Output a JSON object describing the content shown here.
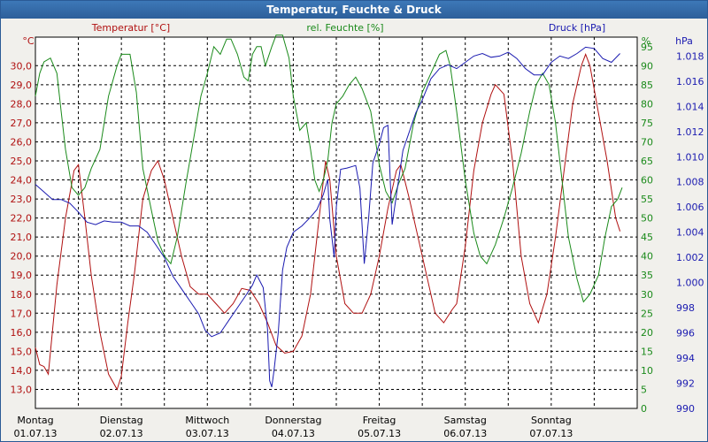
{
  "window": {
    "title": "Temperatur, Feuchte & Druck"
  },
  "chart_data": {
    "type": "line",
    "title": "Temperatur, Feuchte & Druck",
    "grid": true,
    "days": [
      {
        "day": "Montag",
        "date": "01.07.13"
      },
      {
        "day": "Dienstag",
        "date": "02.07.13"
      },
      {
        "day": "Mittwoch",
        "date": "03.07.13"
      },
      {
        "day": "Donnerstag",
        "date": "04.07.13"
      },
      {
        "day": "Freitag",
        "date": "05.07.13"
      },
      {
        "day": "Samstag",
        "date": "06.07.13"
      },
      {
        "day": "Sonntag",
        "date": "07.07.13"
      }
    ],
    "axes": {
      "temperature": {
        "label": "Temperatur [°C]",
        "unit": "°C",
        "range": [
          12,
          31.5
        ],
        "color": "#b01010",
        "ticks": [
          "13,0",
          "14,0",
          "15,0",
          "16,0",
          "17,0",
          "18,0",
          "19,0",
          "20,0",
          "21,0",
          "22,0",
          "23,0",
          "24,0",
          "25,0",
          "26,0",
          "27,0",
          "28,0",
          "29,0",
          "30,0"
        ]
      },
      "humidity": {
        "label": "rel. Feuchte [%]",
        "unit": "%",
        "range": [
          0,
          97.5
        ],
        "color": "#1a8a1a",
        "ticks": [
          "0",
          "5",
          "10",
          "15",
          "20",
          "25",
          "30",
          "35",
          "40",
          "45",
          "50",
          "55",
          "60",
          "65",
          "70",
          "75",
          "80",
          "85",
          "90",
          "95"
        ]
      },
      "pressure": {
        "label": "Druck [hPa]",
        "unit": "hPa",
        "range": [
          990,
          1019.5
        ],
        "color": "#1a1ab0",
        "ticks": [
          "990",
          "992",
          "994",
          "996",
          "998",
          "1.000",
          "1.002",
          "1.004",
          "1.006",
          "1.008",
          "1.010",
          "1.012",
          "1.014",
          "1.016",
          "1.018"
        ]
      }
    },
    "series": [
      {
        "name": "Temperatur [°C]",
        "axis": "temperature",
        "color": "#b01010",
        "points": [
          [
            0,
            15.2
          ],
          [
            0.1,
            14.3
          ],
          [
            0.2,
            14.2
          ],
          [
            0.3,
            13.8
          ],
          [
            0.5,
            18.5
          ],
          [
            0.7,
            22.0
          ],
          [
            0.9,
            24.5
          ],
          [
            1.0,
            24.8
          ],
          [
            1.15,
            22.0
          ],
          [
            1.3,
            19.0
          ],
          [
            1.5,
            16.0
          ],
          [
            1.7,
            13.8
          ],
          [
            1.9,
            13.0
          ],
          [
            2.0,
            13.7
          ],
          [
            2.15,
            16.5
          ],
          [
            2.3,
            19.0
          ],
          [
            2.5,
            23.0
          ],
          [
            2.7,
            24.5
          ],
          [
            2.85,
            25.0
          ],
          [
            3.0,
            24.0
          ],
          [
            3.2,
            22.0
          ],
          [
            3.4,
            20.0
          ],
          [
            3.6,
            18.4
          ],
          [
            3.8,
            18.0
          ],
          [
            4.0,
            18.0
          ],
          [
            4.2,
            17.5
          ],
          [
            4.4,
            17.0
          ],
          [
            4.6,
            17.5
          ],
          [
            4.8,
            18.3
          ],
          [
            5.0,
            18.2
          ],
          [
            5.2,
            17.5
          ],
          [
            5.4,
            16.5
          ],
          [
            5.6,
            15.3
          ],
          [
            5.8,
            14.9
          ],
          [
            6.0,
            15.0
          ],
          [
            6.2,
            15.8
          ],
          [
            6.4,
            18.0
          ],
          [
            6.6,
            22.0
          ],
          [
            6.75,
            25.0
          ],
          [
            6.85,
            24.0
          ],
          [
            7.0,
            20.0
          ],
          [
            7.2,
            17.5
          ],
          [
            7.4,
            17.0
          ],
          [
            7.6,
            17.0
          ],
          [
            7.8,
            18.0
          ],
          [
            8.0,
            20.0
          ],
          [
            8.2,
            22.5
          ],
          [
            8.4,
            24.5
          ],
          [
            8.5,
            24.8
          ],
          [
            8.7,
            23.0
          ],
          [
            8.9,
            21.0
          ],
          [
            9.1,
            19.0
          ],
          [
            9.3,
            17.0
          ],
          [
            9.5,
            16.5
          ],
          [
            9.7,
            17.2
          ],
          [
            9.8,
            17.5
          ],
          [
            10.0,
            20.5
          ],
          [
            10.2,
            24.5
          ],
          [
            10.4,
            27.0
          ],
          [
            10.6,
            28.5
          ],
          [
            10.7,
            29.0
          ],
          [
            10.9,
            28.5
          ],
          [
            11.1,
            25.0
          ],
          [
            11.3,
            20.0
          ],
          [
            11.5,
            17.5
          ],
          [
            11.7,
            16.5
          ],
          [
            11.9,
            18.0
          ],
          [
            12.1,
            21.0
          ],
          [
            12.3,
            24.5
          ],
          [
            12.5,
            28.0
          ],
          [
            12.7,
            30.0
          ],
          [
            12.8,
            30.6
          ],
          [
            12.9,
            30.0
          ],
          [
            13.1,
            27.5
          ],
          [
            13.3,
            25.0
          ],
          [
            13.5,
            22.0
          ],
          [
            13.6,
            21.3
          ]
        ]
      },
      {
        "name": "rel. Feuchte [%]",
        "axis": "humidity",
        "color": "#1a8a1a",
        "points": [
          [
            0,
            82
          ],
          [
            0.1,
            88
          ],
          [
            0.2,
            91
          ],
          [
            0.35,
            92
          ],
          [
            0.5,
            88
          ],
          [
            0.6,
            78
          ],
          [
            0.7,
            68
          ],
          [
            0.85,
            58
          ],
          [
            1.0,
            56
          ],
          [
            1.15,
            58
          ],
          [
            1.3,
            63
          ],
          [
            1.5,
            68
          ],
          [
            1.7,
            82
          ],
          [
            1.9,
            90
          ],
          [
            2.0,
            93
          ],
          [
            2.2,
            93
          ],
          [
            2.35,
            83
          ],
          [
            2.5,
            63
          ],
          [
            2.7,
            52
          ],
          [
            2.85,
            44
          ],
          [
            3.0,
            40
          ],
          [
            3.15,
            38
          ],
          [
            3.3,
            45
          ],
          [
            3.5,
            59
          ],
          [
            3.7,
            72
          ],
          [
            3.85,
            82
          ],
          [
            4.0,
            88
          ],
          [
            4.15,
            95
          ],
          [
            4.3,
            93
          ],
          [
            4.45,
            97
          ],
          [
            4.55,
            97
          ],
          [
            4.7,
            93
          ],
          [
            4.85,
            87
          ],
          [
            4.95,
            86
          ],
          [
            5.05,
            93
          ],
          [
            5.15,
            95
          ],
          [
            5.25,
            95
          ],
          [
            5.35,
            90
          ],
          [
            5.5,
            95
          ],
          [
            5.6,
            98
          ],
          [
            5.75,
            98
          ],
          [
            5.9,
            92
          ],
          [
            6.0,
            82
          ],
          [
            6.15,
            73
          ],
          [
            6.3,
            75
          ],
          [
            6.4,
            68
          ],
          [
            6.5,
            60
          ],
          [
            6.6,
            57
          ],
          [
            6.7,
            60
          ],
          [
            6.8,
            65
          ],
          [
            6.9,
            75
          ],
          [
            7.0,
            80
          ],
          [
            7.15,
            82
          ],
          [
            7.3,
            85
          ],
          [
            7.45,
            87
          ],
          [
            7.6,
            84
          ],
          [
            7.8,
            78
          ],
          [
            8.0,
            64
          ],
          [
            8.15,
            57
          ],
          [
            8.3,
            54
          ],
          [
            8.45,
            59
          ],
          [
            8.6,
            63
          ],
          [
            8.8,
            75
          ],
          [
            9.0,
            83
          ],
          [
            9.2,
            88
          ],
          [
            9.4,
            93
          ],
          [
            9.55,
            94
          ],
          [
            9.65,
            90
          ],
          [
            9.8,
            78
          ],
          [
            10.0,
            60
          ],
          [
            10.2,
            46
          ],
          [
            10.35,
            40
          ],
          [
            10.5,
            38
          ],
          [
            10.7,
            43
          ],
          [
            10.9,
            50
          ],
          [
            11.1,
            58
          ],
          [
            11.3,
            67
          ],
          [
            11.5,
            78
          ],
          [
            11.65,
            85
          ],
          [
            11.8,
            88
          ],
          [
            11.95,
            85
          ],
          [
            12.1,
            75
          ],
          [
            12.25,
            60
          ],
          [
            12.4,
            45
          ],
          [
            12.6,
            34
          ],
          [
            12.75,
            28
          ],
          [
            12.9,
            30
          ],
          [
            13.1,
            35
          ],
          [
            13.25,
            45
          ],
          [
            13.4,
            53
          ],
          [
            13.55,
            55
          ],
          [
            13.65,
            58
          ]
        ]
      },
      {
        "name": "Druck [hPa]",
        "axis": "pressure",
        "color": "#1a1ab0",
        "points": [
          [
            0,
            1007.8
          ],
          [
            0.2,
            1007.2
          ],
          [
            0.4,
            1006.6
          ],
          [
            0.6,
            1006.6
          ],
          [
            0.8,
            1006.3
          ],
          [
            1.0,
            1005.6
          ],
          [
            1.2,
            1004.8
          ],
          [
            1.4,
            1004.6
          ],
          [
            1.6,
            1004.9
          ],
          [
            1.8,
            1004.8
          ],
          [
            2.0,
            1004.8
          ],
          [
            2.2,
            1004.5
          ],
          [
            2.4,
            1004.5
          ],
          [
            2.6,
            1004.0
          ],
          [
            2.8,
            1003.0
          ],
          [
            3.0,
            1002.0
          ],
          [
            3.2,
            1000.5
          ],
          [
            3.4,
            999.5
          ],
          [
            3.6,
            998.5
          ],
          [
            3.8,
            997.5
          ],
          [
            3.95,
            996.2
          ],
          [
            4.1,
            995.7
          ],
          [
            4.3,
            996.0
          ],
          [
            4.5,
            997.0
          ],
          [
            4.7,
            998.0
          ],
          [
            4.9,
            999.0
          ],
          [
            5.05,
            999.8
          ],
          [
            5.15,
            1000.6
          ],
          [
            5.3,
            999.6
          ],
          [
            5.4,
            996.3
          ],
          [
            5.45,
            992.2
          ],
          [
            5.5,
            991.7
          ],
          [
            5.55,
            993.0
          ],
          [
            5.65,
            996.0
          ],
          [
            5.75,
            1001.0
          ],
          [
            5.85,
            1002.8
          ],
          [
            6.0,
            1004.0
          ],
          [
            6.2,
            1004.5
          ],
          [
            6.4,
            1005.2
          ],
          [
            6.55,
            1005.8
          ],
          [
            6.7,
            1007.0
          ],
          [
            6.8,
            1008.2
          ],
          [
            6.85,
            1005.0
          ],
          [
            6.95,
            1002.0
          ],
          [
            7.0,
            1006.0
          ],
          [
            7.1,
            1009.0
          ],
          [
            7.25,
            1009.1
          ],
          [
            7.45,
            1009.3
          ],
          [
            7.55,
            1007.5
          ],
          [
            7.65,
            1001.5
          ],
          [
            7.75,
            1005.0
          ],
          [
            7.85,
            1009.5
          ],
          [
            8.0,
            1011.0
          ],
          [
            8.1,
            1012.3
          ],
          [
            8.2,
            1012.5
          ],
          [
            8.3,
            1004.6
          ],
          [
            8.4,
            1007.0
          ],
          [
            8.55,
            1010.5
          ],
          [
            8.7,
            1012.0
          ],
          [
            8.85,
            1013.5
          ],
          [
            9.0,
            1014.5
          ],
          [
            9.2,
            1016.2
          ],
          [
            9.4,
            1017.0
          ],
          [
            9.6,
            1017.3
          ],
          [
            9.8,
            1017.0
          ],
          [
            10.0,
            1017.5
          ],
          [
            10.2,
            1018.0
          ],
          [
            10.4,
            1018.2
          ],
          [
            10.6,
            1017.9
          ],
          [
            10.8,
            1018.0
          ],
          [
            11.0,
            1018.3
          ],
          [
            11.2,
            1017.8
          ],
          [
            11.4,
            1017.0
          ],
          [
            11.6,
            1016.5
          ],
          [
            11.8,
            1016.5
          ],
          [
            12.0,
            1017.5
          ],
          [
            12.2,
            1018.0
          ],
          [
            12.4,
            1017.8
          ],
          [
            12.6,
            1018.2
          ],
          [
            12.8,
            1018.7
          ],
          [
            13.0,
            1018.6
          ],
          [
            13.2,
            1017.8
          ],
          [
            13.4,
            1017.5
          ],
          [
            13.6,
            1018.2
          ]
        ]
      }
    ]
  }
}
